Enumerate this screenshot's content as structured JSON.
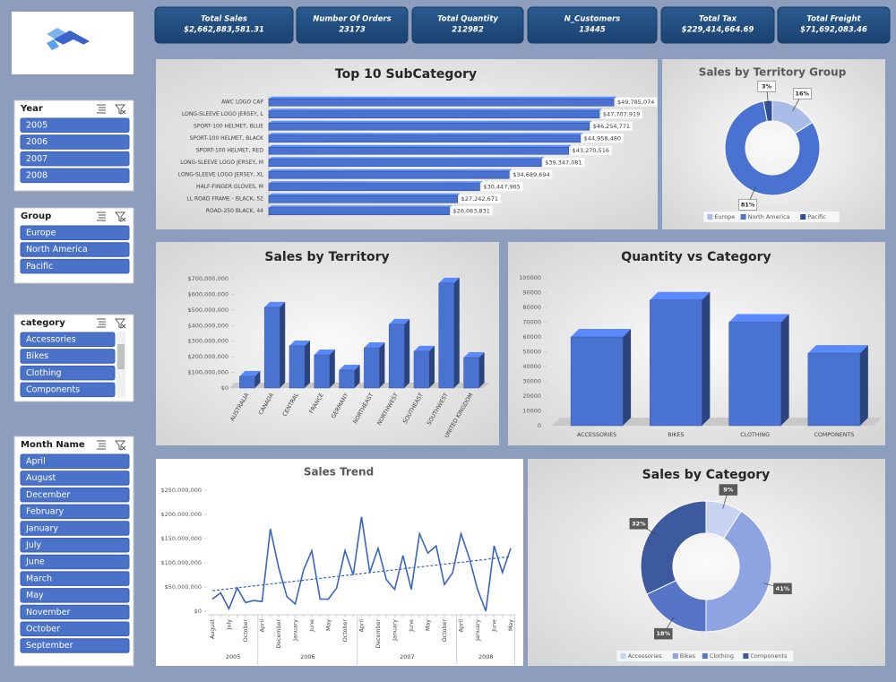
{
  "kpis": [
    {
      "title": "Total Sales",
      "value": "$2,662,883,581.31"
    },
    {
      "title": "Number Of Orders",
      "value": "23173"
    },
    {
      "title": "Total Quantity",
      "value": "212982"
    },
    {
      "title": "N_Customers",
      "value": "13445"
    },
    {
      "title": "Total Tax",
      "value": "$229,414,664.69"
    },
    {
      "title": "Total Freight",
      "value": "$71,692,083.46"
    }
  ],
  "slicers": [
    {
      "title": "Year",
      "items": [
        "2005",
        "2006",
        "2007",
        "2008"
      ]
    },
    {
      "title": "Group",
      "items": [
        "Europe",
        "North America",
        "Pacific"
      ]
    },
    {
      "title": "category",
      "items": [
        "Accessories",
        "Bikes",
        "Clothing",
        "Components"
      ]
    },
    {
      "title": "Month Name",
      "items": [
        "April",
        "August",
        "December",
        "February",
        "January",
        "July",
        "June",
        "March",
        "May",
        "November",
        "October",
        "September"
      ]
    }
  ],
  "chart_data": [
    {
      "type": "barh",
      "title": "Top 10 SubCategory",
      "categories": [
        "AWC LOGO CAP",
        "LONG-SLEEVE LOGO JERSEY, L",
        "SPORT-100 HELMET, BLUE",
        "SPORT-100 HELMET, BLACK",
        "SPORT-100 HELMET, RED",
        "LONG-SLEEVE LOGO JERSEY, M",
        "LONG-SLEEVE LOGO JERSEY, XL",
        "HALF-FINGER GLOVES, M",
        "LL ROAD FRAME - BLACK, 52",
        "ROAD-250 BLACK, 44"
      ],
      "values": [
        49785074,
        47707919,
        46254771,
        44958480,
        43270516,
        39347081,
        34689694,
        30447965,
        27242671,
        26063831
      ],
      "value_labels": [
        "$49,785,074",
        "$47,707,919",
        "$46,254,771",
        "$44,958,480",
        "$43,270,516",
        "$39,347,081",
        "$34,689,694",
        "$30,447,965",
        "$27,242,671",
        "$26,063,831"
      ],
      "color": "#4a72d0"
    },
    {
      "type": "donut",
      "title": "Sales by Territory Group",
      "categories": [
        "Europe",
        "North America",
        "Pacific"
      ],
      "values": [
        16,
        81,
        3
      ],
      "value_labels": [
        "16%",
        "81%",
        "3%"
      ],
      "colors": [
        "#a9bce8",
        "#4a72d0",
        "#2f4f9a"
      ],
      "legend": "bottom"
    },
    {
      "type": "bar",
      "title": "Sales by Territory",
      "categories": [
        "AUSTRALIA",
        "CANADA",
        "CENTRAL",
        "FRANCE",
        "GERMANY",
        "NORTHEAST",
        "NORTHWEST",
        "SOUTHEAST",
        "SOUTHWEST",
        "UNITED KINGDOM"
      ],
      "values": [
        75000000,
        517000000,
        270000000,
        212000000,
        115000000,
        258000000,
        408000000,
        236000000,
        672000000,
        195000000
      ],
      "color": "#4a72d0",
      "ylim": [
        0,
        700000000
      ],
      "yticks": [
        {
          "value": 0,
          "label": "$0"
        },
        {
          "value": 100000000,
          "label": "$100,000,000"
        },
        {
          "value": 200000000,
          "label": "$200,000,000"
        },
        {
          "value": 300000000,
          "label": "$300,000,000"
        },
        {
          "value": 400000000,
          "label": "$400,000,000"
        },
        {
          "value": 500000000,
          "label": "$500,000,000"
        },
        {
          "value": 600000000,
          "label": "$600,000,000"
        },
        {
          "value": 700000000,
          "label": "$700,000,000"
        }
      ]
    },
    {
      "type": "bar",
      "title": "Quantity vs Category",
      "categories": [
        "ACCESSORIES",
        "BIKES",
        "CLOTHING",
        "COMPONENTS"
      ],
      "values": [
        60000,
        85000,
        70000,
        49000
      ],
      "color": "#4a72d0",
      "ylim": [
        0,
        100000
      ],
      "yticks": [
        0,
        10000,
        20000,
        30000,
        40000,
        50000,
        60000,
        70000,
        80000,
        90000,
        100000
      ]
    },
    {
      "type": "line",
      "title": "Sales Trend",
      "categories": [
        "August",
        null,
        "July",
        null,
        "October",
        null,
        "April",
        null,
        "December",
        null,
        "January",
        null,
        "June",
        null,
        "May",
        null,
        "October",
        null,
        "April",
        null,
        "December",
        null,
        "January",
        null,
        "June",
        null,
        "May",
        null,
        "October",
        null,
        "April",
        null,
        "January",
        null,
        "June",
        null,
        "May"
      ],
      "category_groups": [
        "2005",
        "2005",
        "2005",
        "2005",
        "2005",
        "2005",
        "2006",
        "2006",
        "2006",
        "2006",
        "2006",
        "2006",
        "2006",
        "2006",
        "2006",
        "2006",
        "2006",
        "2006",
        "2007",
        "2007",
        "2007",
        "2007",
        "2007",
        "2007",
        "2007",
        "2007",
        "2007",
        "2007",
        "2007",
        "2007",
        "2008",
        "2008",
        "2008",
        "2008",
        "2008",
        "2008",
        "2008"
      ],
      "values": [
        25000000,
        38000000,
        5000000,
        48000000,
        18000000,
        22000000,
        20000000,
        170000000,
        90000000,
        30000000,
        15000000,
        85000000,
        125000000,
        25000000,
        25000000,
        48000000,
        125000000,
        75000000,
        195000000,
        80000000,
        130000000,
        65000000,
        45000000,
        115000000,
        45000000,
        160000000,
        120000000,
        135000000,
        55000000,
        80000000,
        160000000,
        110000000,
        45000000,
        0,
        135000000,
        80000000,
        130000000
      ],
      "color": "#3a64c0",
      "trendline": true,
      "ylim": [
        0,
        250000000
      ],
      "yticks": [
        {
          "value": 0,
          "label": "$0"
        },
        {
          "value": 50000000,
          "label": "$50,000,000"
        },
        {
          "value": 100000000,
          "label": "$100,000,000"
        },
        {
          "value": 150000000,
          "label": "$150,000,000"
        },
        {
          "value": 200000000,
          "label": "$200,000,000"
        },
        {
          "value": 250000000,
          "label": "$250,000,000"
        }
      ]
    },
    {
      "type": "donut",
      "title": "Sales by Category",
      "categories": [
        "Accessories",
        "Bikes",
        "Clothing",
        "Components"
      ],
      "values": [
        9,
        41,
        18,
        32
      ],
      "value_labels": [
        "9%",
        "41%",
        "18%",
        "32%"
      ],
      "colors": [
        "#c8d3f2",
        "#8ea4e2",
        "#5775c7",
        "#3d5a9e"
      ],
      "legend": "bottom"
    }
  ]
}
